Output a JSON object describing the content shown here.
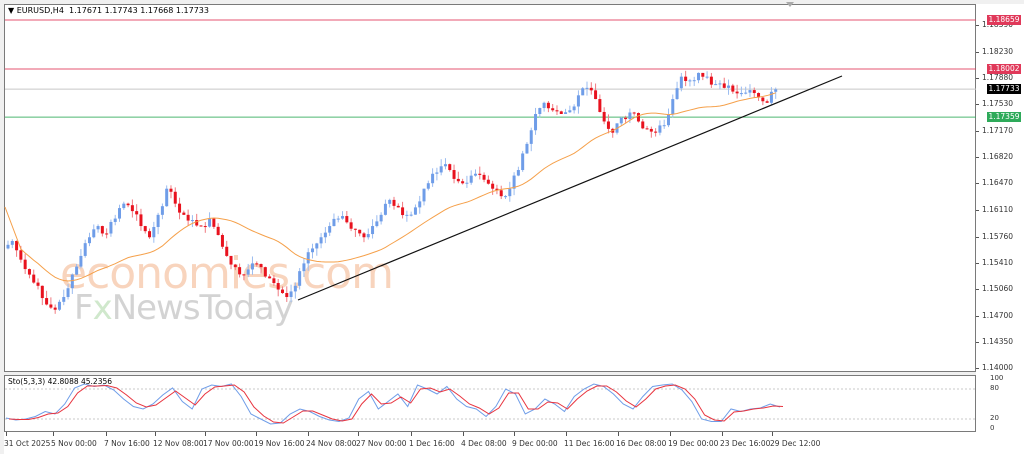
{
  "chart_data": {
    "type": "candlestick",
    "title": "EURUSD,H4",
    "symbol": "EURUSD",
    "timeframe": "H4",
    "ohlc_last": {
      "open": "1.17671",
      "high": "1.17743",
      "low": "1.17668",
      "close": "1.17733"
    },
    "price_axis": {
      "labels": [
        "1.18590",
        "1.18230",
        "1.17880",
        "1.17530",
        "1.17170",
        "1.16820",
        "1.16470",
        "1.16110",
        "1.15760",
        "1.15410",
        "1.15060",
        "1.14700",
        "1.14350",
        "1.14000"
      ],
      "range": [
        1.14,
        1.19
      ]
    },
    "horizontal_lines": [
      {
        "price": "1.18659",
        "color": "#e0395a",
        "label": "1.18659"
      },
      {
        "price": "1.18002",
        "color": "#e0395a",
        "label": "1.18002"
      },
      {
        "price": "1.17733",
        "color": "#000000",
        "label": "1.17733",
        "type": "current-price"
      },
      {
        "price": "1.17359",
        "color": "#2eaa5a",
        "label": "1.17359"
      }
    ],
    "trendline": {
      "from": {
        "time": "20 Nov 2025",
        "price": 1.1491
      },
      "to": {
        "time": "31 Dec 2025",
        "price": 1.1788
      },
      "color": "#000000"
    },
    "moving_average": {
      "color": "#f5a04a"
    },
    "time_axis": [
      "31 Oct 2025",
      "5 Nov 00:00",
      "7 Nov 16:00",
      "12 Nov 08:00",
      "17 Nov 00:00",
      "19 Nov 16:00",
      "24 Nov 08:00",
      "27 Nov 00:00",
      "1 Dec 16:00",
      "4 Dec 08:00",
      "9 Dec 00:00",
      "11 Dec 16:00",
      "16 Dec 08:00",
      "19 Dec 00:00",
      "23 Dec 16:00",
      "29 Dec 12:00"
    ],
    "close_path": [
      1.157,
      1.1545,
      1.1525,
      1.151,
      1.1485,
      1.1478,
      1.1495,
      1.1525,
      1.155,
      1.1575,
      1.159,
      1.158,
      1.16,
      1.162,
      1.161,
      1.159,
      1.1575,
      1.1605,
      1.164,
      1.162,
      1.1605,
      1.1598,
      1.159,
      1.16,
      1.1578,
      1.155,
      1.1535,
      1.1525,
      1.154,
      1.1535,
      1.152,
      1.1505,
      1.1495,
      1.151,
      1.154,
      1.156,
      1.1575,
      1.159,
      1.16,
      1.1595,
      1.1585,
      1.1575,
      1.159,
      1.1605,
      1.1625,
      1.1615,
      1.1605,
      1.1615,
      1.164,
      1.166,
      1.167,
      1.1665,
      1.165,
      1.1648,
      1.166,
      1.1652,
      1.164,
      1.163,
      1.164,
      1.1665,
      1.17,
      1.174,
      1.1755,
      1.1745,
      1.174,
      1.1745,
      1.1765,
      1.1775,
      1.176,
      1.173,
      1.1715,
      1.1735,
      1.1742,
      1.173,
      1.172,
      1.1715,
      1.1725,
      1.176,
      1.179,
      1.1785,
      1.1795,
      1.179,
      1.178,
      1.1775,
      1.177,
      1.1768,
      1.1772,
      1.1762,
      1.1755,
      1.1773
    ],
    "stochastic": {
      "name": "Sto(5,3,3)",
      "main": "42.8088",
      "signal": "45.2356",
      "levels": [
        20,
        80
      ],
      "axis_labels": [
        "100",
        "80",
        "20",
        "0"
      ],
      "main_color": "#6f9de8",
      "signal_color": "#e8343f",
      "main_values": [
        22,
        18,
        20,
        25,
        35,
        30,
        50,
        82,
        90,
        85,
        88,
        78,
        60,
        45,
        40,
        50,
        68,
        82,
        55,
        40,
        80,
        88,
        85,
        90,
        65,
        30,
        20,
        10,
        12,
        30,
        40,
        35,
        25,
        18,
        15,
        22,
        60,
        75,
        40,
        55,
        70,
        45,
        88,
        80,
        70,
        85,
        60,
        45,
        40,
        25,
        45,
        80,
        70,
        30,
        40,
        60,
        50,
        35,
        65,
        80,
        90,
        85,
        70,
        50,
        40,
        65,
        85,
        88,
        90,
        78,
        55,
        20,
        15,
        15,
        40,
        35,
        40,
        42,
        50,
        44
      ],
      "signal_values": [
        20,
        19,
        19,
        23,
        30,
        32,
        45,
        72,
        86,
        86,
        87,
        82,
        68,
        52,
        44,
        48,
        62,
        76,
        62,
        48,
        70,
        84,
        86,
        88,
        74,
        44,
        26,
        14,
        12,
        24,
        36,
        36,
        28,
        20,
        16,
        20,
        50,
        70,
        50,
        52,
        64,
        52,
        80,
        82,
        74,
        80,
        66,
        50,
        42,
        30,
        42,
        72,
        72,
        40,
        40,
        54,
        52,
        40,
        60,
        76,
        86,
        86,
        74,
        56,
        44,
        60,
        80,
        86,
        88,
        80,
        60,
        28,
        18,
        16,
        34,
        36,
        40,
        42,
        46,
        45
      ]
    }
  },
  "header": {
    "title": "EURUSD,H4  1.17671 1.17743 1.17668 1.17733"
  },
  "indicator": {
    "label": "Sto(5,3,3) 42.8088 45.2356"
  },
  "watermark": {
    "line1": "economies.com",
    "line2_a": "F",
    "line2_x": "x",
    "line2_b": "NewsToday"
  }
}
